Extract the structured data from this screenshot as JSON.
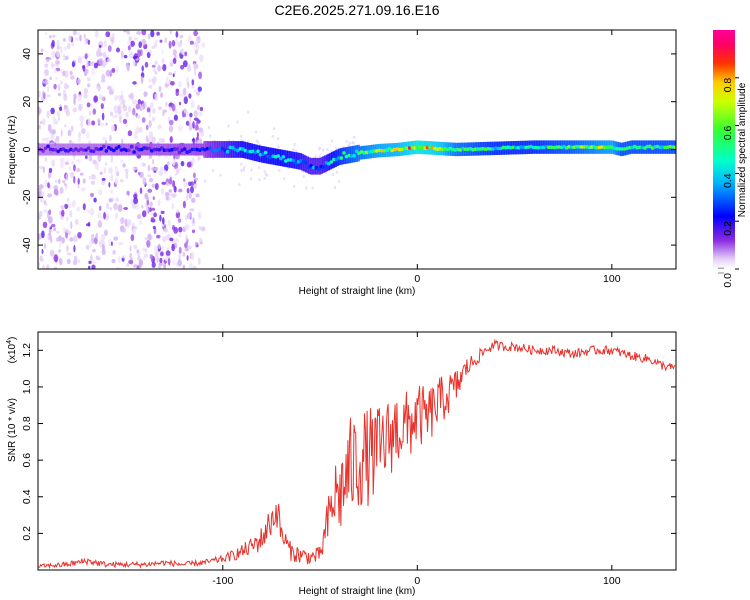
{
  "title": "C2E6.2025.271.09.16.E16",
  "chart_data": [
    {
      "type": "heatmap",
      "panel": "spectrogram",
      "xlabel": "Height of straight line (km)",
      "ylabel": "Frequency (Hz)",
      "xlim": [
        -195,
        133
      ],
      "ylim": [
        -50,
        50
      ],
      "xticks": [
        -100,
        0,
        100
      ],
      "xtick_labels": [
        "-100",
        "0",
        "100"
      ],
      "yticks": [
        -40,
        -20,
        0,
        20,
        40
      ],
      "ytick_labels": [
        "-40",
        "-20",
        "0",
        "20",
        "40"
      ],
      "colorbar": {
        "label": "Normalized spectral amplitude",
        "range": [
          0,
          1
        ],
        "ticks": [
          0.0,
          0.2,
          0.4,
          0.6,
          0.8
        ],
        "tick_labels": [
          "0.0",
          "0.2",
          "0.4",
          "0.6",
          "0.8"
        ],
        "colormap": "rainbow (white-violet-blue-cyan-green-yellow-red-magenta)"
      },
      "ridge": {
        "x": [
          -195,
          -110,
          -100,
          -90,
          -80,
          -70,
          -60,
          -55,
          -50,
          -40,
          -30,
          -20,
          -10,
          0,
          10,
          20,
          40,
          60,
          80,
          100,
          105,
          110,
          133
        ],
        "f": [
          0,
          0,
          0,
          0,
          -2,
          -3.5,
          -5,
          -7,
          -7,
          -3,
          -1.5,
          -0.5,
          0,
          1,
          0.5,
          0,
          0.5,
          1,
          1,
          1,
          0,
          1,
          1
        ],
        "amp": [
          0.15,
          0.2,
          0.3,
          0.38,
          0.38,
          0.4,
          0.35,
          0.3,
          0.3,
          0.45,
          0.55,
          0.62,
          0.65,
          0.75,
          0.7,
          0.55,
          0.45,
          0.45,
          0.52,
          0.62,
          0.5,
          0.5,
          0.5
        ]
      },
      "noise_region_x": [
        -195,
        -110
      ]
    },
    {
      "type": "line",
      "panel": "snr",
      "xlabel": "Height of straight line (km)",
      "ylabel": "SNR (10 * v/v)",
      "y_scale_label": "(x10",
      "y_scale_exponent": "4",
      "xlim": [
        -195,
        133
      ],
      "ylim": [
        0,
        1.3
      ],
      "xticks": [
        -100,
        0,
        100
      ],
      "xtick_labels": [
        "-100",
        "0",
        "100"
      ],
      "yticks": [
        0.2,
        0.4,
        0.6,
        0.8,
        1.0,
        1.2
      ],
      "ytick_labels": [
        "0.2",
        "0.4",
        "0.6",
        "0.8",
        "1.0",
        "1.2"
      ],
      "color": "#e8332d",
      "series": [
        {
          "name": "SNR",
          "x": [
            -195,
            -180,
            -170,
            -160,
            -150,
            -140,
            -130,
            -120,
            -110,
            -100,
            -95,
            -90,
            -85,
            -80,
            -75,
            -72,
            -70,
            -65,
            -60,
            -55,
            -50,
            -45,
            -42,
            -40,
            -35,
            -30,
            -25,
            -20,
            -15,
            -10,
            -5,
            0,
            5,
            10,
            15,
            20,
            25,
            30,
            35,
            40,
            45,
            50,
            60,
            70,
            80,
            90,
            100,
            110,
            120,
            125,
            133
          ],
          "y": [
            0.02,
            0.03,
            0.05,
            0.03,
            0.03,
            0.03,
            0.04,
            0.03,
            0.04,
            0.06,
            0.08,
            0.1,
            0.13,
            0.17,
            0.27,
            0.33,
            0.2,
            0.1,
            0.08,
            0.07,
            0.08,
            0.3,
            0.42,
            0.4,
            0.55,
            0.6,
            0.62,
            0.65,
            0.72,
            0.78,
            0.78,
            0.85,
            0.83,
            0.9,
            0.95,
            1.0,
            1.1,
            1.15,
            1.2,
            1.23,
            1.22,
            1.22,
            1.2,
            1.2,
            1.18,
            1.2,
            1.2,
            1.17,
            1.15,
            1.12,
            1.1
          ],
          "noise_amplitude": [
            0.01,
            0.015,
            0.02,
            0.015,
            0.015,
            0.015,
            0.015,
            0.015,
            0.015,
            0.02,
            0.03,
            0.04,
            0.05,
            0.07,
            0.09,
            0.1,
            0.07,
            0.05,
            0.05,
            0.04,
            0.05,
            0.16,
            0.2,
            0.22,
            0.28,
            0.28,
            0.27,
            0.25,
            0.22,
            0.22,
            0.2,
            0.18,
            0.16,
            0.15,
            0.12,
            0.1,
            0.06,
            0.04,
            0.03,
            0.025,
            0.025,
            0.025,
            0.025,
            0.025,
            0.025,
            0.025,
            0.025,
            0.025,
            0.025,
            0.025,
            0.025
          ]
        }
      ]
    }
  ]
}
